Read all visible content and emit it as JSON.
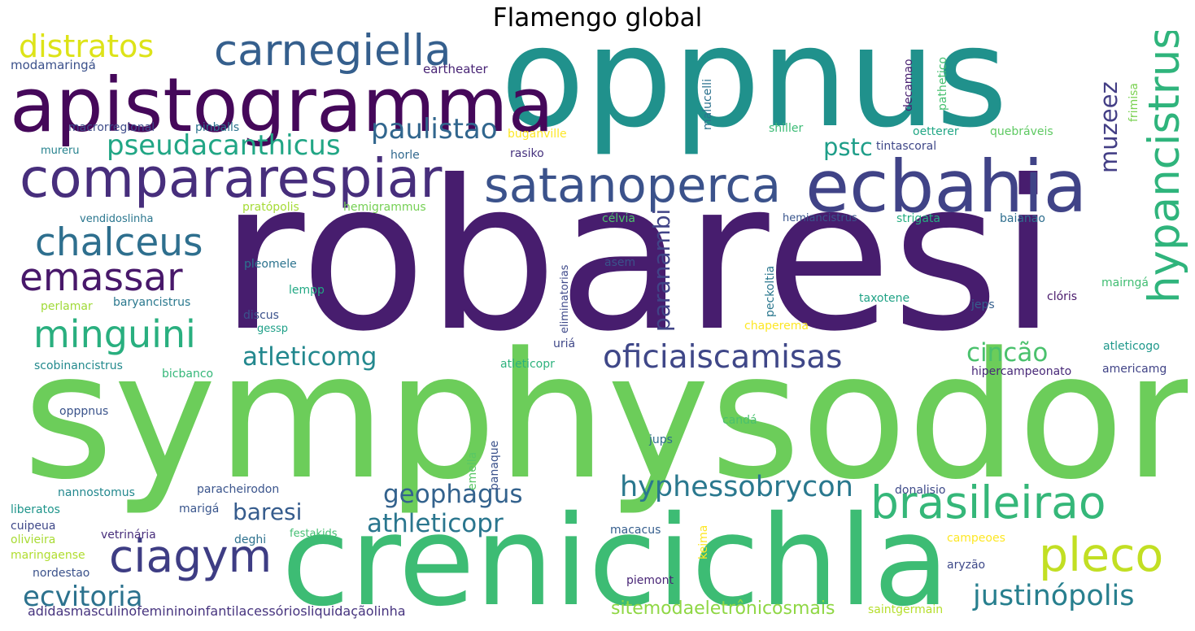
{
  "title": "Flamengo global",
  "words": [
    {
      "text": "robaresi",
      "color": "#471d6e"
    },
    {
      "text": "symphysodon",
      "color": "#6ccd5a"
    },
    {
      "text": "oppnus",
      "color": "#20918c"
    },
    {
      "text": "crenicichla",
      "color": "#3dbc74"
    },
    {
      "text": "apistogramma",
      "color": "#45085a"
    },
    {
      "text": "ecbahia",
      "color": "#404387"
    },
    {
      "text": "compararespiar",
      "color": "#472e7c"
    },
    {
      "text": "satanoperca",
      "color": "#3b528b"
    },
    {
      "text": "carnegiella",
      "color": "#355f8d"
    },
    {
      "text": "brasileirao",
      "color": "#35b779"
    },
    {
      "text": "pleco",
      "color": "#c2df23"
    },
    {
      "text": "ciagym",
      "color": "#3e3d84"
    },
    {
      "text": "hypancistrus",
      "color": "#2fb47c"
    },
    {
      "text": "chalceus",
      "color": "#2e6f8e"
    },
    {
      "text": "emassar",
      "color": "#48186a"
    },
    {
      "text": "minguini",
      "color": "#29af7f"
    },
    {
      "text": "distratos",
      "color": "#dde318"
    },
    {
      "text": "pseudacanthicus",
      "color": "#21a685"
    },
    {
      "text": "paulistao",
      "color": "#31668e"
    },
    {
      "text": "oficiaiscamisas",
      "color": "#3f4788"
    },
    {
      "text": "hyphessobrycon",
      "color": "#2a788e"
    },
    {
      "text": "justinópolis",
      "color": "#277f8e"
    },
    {
      "text": "ecvitoria",
      "color": "#2c728e"
    },
    {
      "text": "atleticomg",
      "color": "#23888e"
    },
    {
      "text": "geophagus",
      "color": "#33628d"
    },
    {
      "text": "athleticopr",
      "color": "#2a768e"
    },
    {
      "text": "cincão",
      "color": "#4ac16d"
    },
    {
      "text": "baresi",
      "color": "#365c8d"
    },
    {
      "text": "muzeez",
      "color": "#433e85"
    },
    {
      "text": "pstc",
      "color": "#1f9e89"
    },
    {
      "text": "paranambi",
      "color": "#414487"
    },
    {
      "text": "sitemodaeletrônicosmais",
      "color": "#8fd744"
    },
    {
      "text": "adidasmasculinofemininoinfantilacessóriosliquidaçãolinha",
      "color": "#46337e"
    },
    {
      "text": "modamaringá",
      "color": "#3b518b"
    },
    {
      "text": "eartheater",
      "color": "#482475"
    },
    {
      "text": "macrorregional",
      "color": "#3e4c8a"
    },
    {
      "text": "pinballs",
      "color": "#2c738e"
    },
    {
      "text": "mureru",
      "color": "#26828e"
    },
    {
      "text": "horle",
      "color": "#31688e"
    },
    {
      "text": "rasiko",
      "color": "#46327e"
    },
    {
      "text": "buganville",
      "color": "#fde725"
    },
    {
      "text": "malucelli",
      "color": "#2c728e"
    },
    {
      "text": "decamao",
      "color": "#481f70"
    },
    {
      "text": "pathetico",
      "color": "#46c06f"
    },
    {
      "text": "frimisa",
      "color": "#7ad151"
    },
    {
      "text": "shiller",
      "color": "#3bbb75"
    },
    {
      "text": "oetterer",
      "color": "#22a785"
    },
    {
      "text": "quebráveis",
      "color": "#5ec962"
    },
    {
      "text": "tintascoral",
      "color": "#3f4788"
    },
    {
      "text": "vendidoslinha",
      "color": "#2a768e"
    },
    {
      "text": "pratópolis",
      "color": "#a5db36"
    },
    {
      "text": "hemigrammus",
      "color": "#75d054"
    },
    {
      "text": "célvia",
      "color": "#4ec36b"
    },
    {
      "text": "hemiancistrus",
      "color": "#39558c"
    },
    {
      "text": "strigata",
      "color": "#26ad81"
    },
    {
      "text": "baianao",
      "color": "#2e6e8e"
    },
    {
      "text": "pleomele",
      "color": "#2c738e"
    },
    {
      "text": "asem",
      "color": "#3b528b"
    },
    {
      "text": "eliminatorias",
      "color": "#3e4989"
    },
    {
      "text": "peckoltia",
      "color": "#2a778e"
    },
    {
      "text": "mairngá",
      "color": "#40bd72"
    },
    {
      "text": "lempp",
      "color": "#22a884"
    },
    {
      "text": "perlamar",
      "color": "#a0da39"
    },
    {
      "text": "baryancistrus",
      "color": "#2a788e"
    },
    {
      "text": "discus",
      "color": "#3b528b"
    },
    {
      "text": "gessp",
      "color": "#1fa088"
    },
    {
      "text": "chaperema",
      "color": "#fde725"
    },
    {
      "text": "taxotene",
      "color": "#20a386"
    },
    {
      "text": "jeps",
      "color": "#355f8d"
    },
    {
      "text": "clóris",
      "color": "#48186a"
    },
    {
      "text": "atleticogo",
      "color": "#1f988b"
    },
    {
      "text": "scobinancistrus",
      "color": "#238a8d"
    },
    {
      "text": "bicbanco",
      "color": "#35b779"
    },
    {
      "text": "uriá",
      "color": "#3f4788"
    },
    {
      "text": "atleticopr",
      "color": "#2db27d"
    },
    {
      "text": "hipercampeonato",
      "color": "#482878"
    },
    {
      "text": "americamg",
      "color": "#414487"
    },
    {
      "text": "opppnus",
      "color": "#3a538b"
    },
    {
      "text": "candá",
      "color": "#4ac16d"
    },
    {
      "text": "panaque",
      "color": "#3b528b"
    },
    {
      "text": "emella",
      "color": "#58c765"
    },
    {
      "text": "jups",
      "color": "#2f6c8e"
    },
    {
      "text": "nannostomus",
      "color": "#23888e"
    },
    {
      "text": "paracheirodon",
      "color": "#3a548c"
    },
    {
      "text": "donalisio",
      "color": "#3e4a89"
    },
    {
      "text": "liberatos",
      "color": "#1f958b"
    },
    {
      "text": "marigá",
      "color": "#39558c"
    },
    {
      "text": "cuipeua",
      "color": "#3f4889"
    },
    {
      "text": "olivieira",
      "color": "#a8db34"
    },
    {
      "text": "vetrinária",
      "color": "#472d7b"
    },
    {
      "text": "deghi",
      "color": "#2d718e"
    },
    {
      "text": "festakids",
      "color": "#42be71"
    },
    {
      "text": "macacus",
      "color": "#355e8d"
    },
    {
      "text": "keima",
      "color": "#fde725"
    },
    {
      "text": "campeoes",
      "color": "#fde725"
    },
    {
      "text": "maringaense",
      "color": "#b0dd2f"
    },
    {
      "text": "aryzão",
      "color": "#3e4989"
    },
    {
      "text": "nordestao",
      "color": "#3b528b"
    },
    {
      "text": "piemont",
      "color": "#482576"
    },
    {
      "text": "saintgermain",
      "color": "#b5de2b"
    }
  ]
}
